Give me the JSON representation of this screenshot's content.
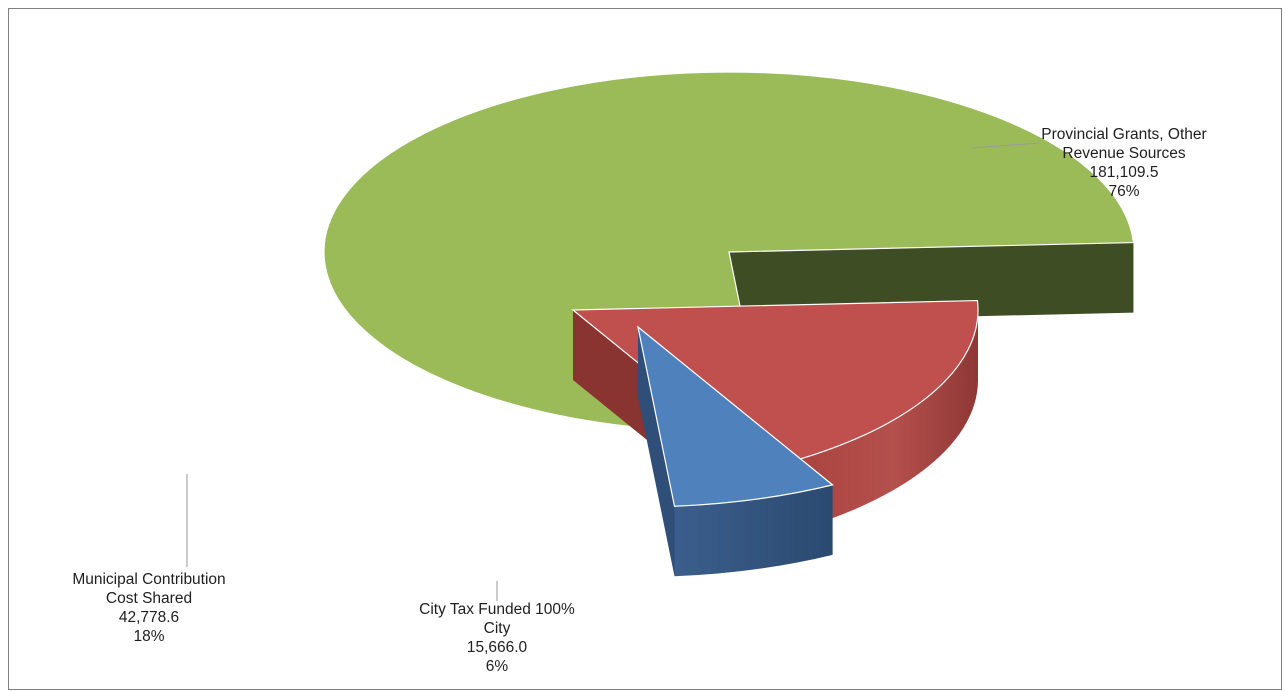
{
  "chart_data": {
    "type": "pie",
    "subtype": "3d-exploded",
    "categories": [
      "Provincial Grants, Other Revenue Sources",
      "Municipal Contribution Cost Shared",
      "City Tax Funded 100% City"
    ],
    "values": [
      181109.5,
      42778.6,
      15666.0
    ],
    "percentages": [
      76,
      18,
      6
    ],
    "colors": [
      "#9bbb59",
      "#c0504d",
      "#4f81bd"
    ],
    "side_colors": [
      "#3e4d23",
      "#8a3432",
      "#2f4f78"
    ],
    "labels": [
      {
        "lines": [
          "Provincial Grants, Other",
          "Revenue Sources"
        ],
        "value": "181,109.5",
        "percent": "76%"
      },
      {
        "lines": [
          "Municipal Contribution",
          "Cost Shared"
        ],
        "value": "42,778.6",
        "percent": "18%"
      },
      {
        "lines": [
          "City Tax Funded 100%",
          "City"
        ],
        "value": "15,666.0",
        "percent": "6%"
      }
    ]
  }
}
